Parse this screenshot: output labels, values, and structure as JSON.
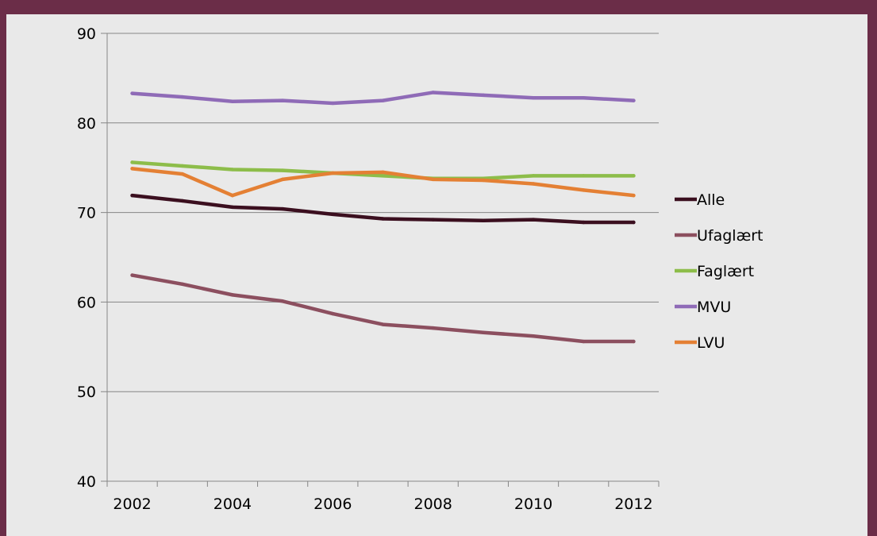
{
  "chart_data": {
    "type": "line",
    "x": [
      2002,
      2003,
      2004,
      2005,
      2006,
      2007,
      2008,
      2009,
      2010,
      2011,
      2012
    ],
    "xticks": [
      "2002",
      "2004",
      "2006",
      "2008",
      "2010",
      "2012"
    ],
    "yticks": [
      "40",
      "50",
      "60",
      "70",
      "80",
      "90"
    ],
    "ylim": [
      40,
      90
    ],
    "grid": true,
    "legend_position": "right",
    "series": [
      {
        "name": "Alle",
        "color": "#3b0f1f",
        "values": [
          71.9,
          71.3,
          70.6,
          70.4,
          69.8,
          69.3,
          69.2,
          69.1,
          69.2,
          68.9,
          68.9
        ]
      },
      {
        "name": "Ufaglært",
        "color": "#8c4f5f",
        "values": [
          63.0,
          62.0,
          60.8,
          60.1,
          58.7,
          57.5,
          57.1,
          56.6,
          56.2,
          55.6,
          55.6
        ]
      },
      {
        "name": "Faglært",
        "color": "#8dbd4a",
        "values": [
          75.6,
          75.2,
          74.8,
          74.7,
          74.4,
          74.1,
          73.8,
          73.8,
          74.1,
          74.1,
          74.1
        ]
      },
      {
        "name": "MVU",
        "color": "#8f6bb7",
        "values": [
          83.3,
          82.9,
          82.4,
          82.5,
          82.2,
          82.5,
          83.4,
          83.1,
          82.8,
          82.8,
          82.5
        ]
      },
      {
        "name": "LVU",
        "color": "#e48034",
        "values": [
          74.9,
          74.3,
          71.9,
          73.7,
          74.4,
          74.5,
          73.7,
          73.6,
          73.2,
          72.5,
          71.9
        ]
      }
    ]
  }
}
